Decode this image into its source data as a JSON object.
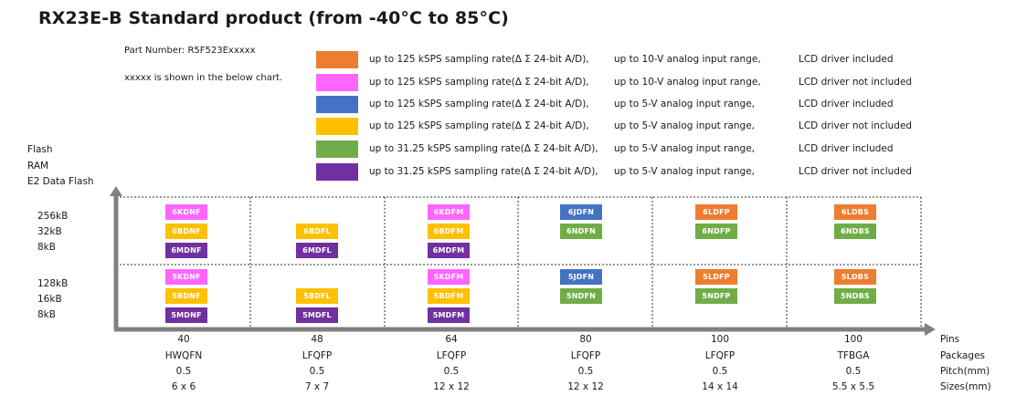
{
  "title": "RX23E-B Standard product (from -40°C to 85°C)",
  "part_number": "Part Number: R5F523Exxxxx",
  "part_note": "xxxxx is shown in the below chart.",
  "legend": [
    {
      "color": "#ED7D31",
      "rate": "up to 125 kSPS sampling rate(Δ Σ 24-bit A/D),",
      "range": "up to 10-V analog input range,",
      "lcd": "LCD driver included"
    },
    {
      "color": "#FF66FF",
      "rate": "up to 125 kSPS sampling rate(Δ Σ 24-bit A/D),",
      "range": "up to 10-V analog input range,",
      "lcd": "LCD driver not included"
    },
    {
      "color": "#4472C4",
      "rate": "up to 125 kSPS sampling rate(Δ Σ 24-bit A/D),",
      "range": "up to 5-V analog input range,",
      "lcd": "LCD driver included"
    },
    {
      "color": "#FFC000",
      "rate": "up to 125 kSPS sampling rate(Δ Σ 24-bit A/D),",
      "range": "up to 5-V analog input range,",
      "lcd": "LCD driver not included"
    },
    {
      "color": "#70AD47",
      "rate": "up to 31.25 kSPS sampling rate(Δ Σ 24-bit A/D),",
      "range": "up to 5-V analog input range,",
      "lcd": "LCD driver included"
    },
    {
      "color": "#7030A0",
      "rate": "up to 31.25 kSPS sampling rate(Δ Σ 24-bit A/D),",
      "range": "up to 5-V analog input range,",
      "lcd": "LCD driver not included"
    }
  ],
  "y_axis_headers": [
    "Flash",
    "RAM",
    "E2 Data Flash"
  ],
  "memory_rows": [
    [
      "256kB",
      "32kB",
      "8kB"
    ],
    [
      "128kB",
      "16kB",
      "8kB"
    ]
  ],
  "columns": [
    {
      "pins": "40",
      "package": "HWQFN",
      "pitch": "0.5",
      "size": "6 x 6"
    },
    {
      "pins": "48",
      "package": "LFQFP",
      "pitch": "0.5",
      "size": "7 x 7"
    },
    {
      "pins": "64",
      "package": "LFQFP",
      "pitch": "0.5",
      "size": "12 x 12"
    },
    {
      "pins": "80",
      "package": "LFQFP",
      "pitch": "0.5",
      "size": "12 x 12"
    },
    {
      "pins": "100",
      "package": "LFQFP",
      "pitch": "0.5",
      "size": "14 x 14"
    },
    {
      "pins": "100",
      "package": "TFBGA",
      "pitch": "0.5",
      "size": "5.5 x 5.5"
    }
  ],
  "row_labels": [
    "Pins",
    "Packages",
    "Pitch(mm)",
    "Sizes(mm)"
  ],
  "lineup": {
    "cells": [
      {
        "code": "6KDNF",
        "col": 0,
        "mem": 0,
        "slot": 0,
        "color": "#FF66FF"
      },
      {
        "code": "6BDNF",
        "col": 0,
        "mem": 0,
        "slot": 1,
        "color": "#FFC000"
      },
      {
        "code": "6MDNF",
        "col": 0,
        "mem": 0,
        "slot": 2,
        "color": "#7030A0"
      },
      {
        "code": "6BDFL",
        "col": 1,
        "mem": 0,
        "slot": 1,
        "color": "#FFC000"
      },
      {
        "code": "6MDFL",
        "col": 1,
        "mem": 0,
        "slot": 2,
        "color": "#7030A0"
      },
      {
        "code": "6KDFM",
        "col": 2,
        "mem": 0,
        "slot": 0,
        "color": "#FF66FF"
      },
      {
        "code": "6BDFM",
        "col": 2,
        "mem": 0,
        "slot": 1,
        "color": "#FFC000"
      },
      {
        "code": "6MDFM",
        "col": 2,
        "mem": 0,
        "slot": 2,
        "color": "#7030A0"
      },
      {
        "code": "6JDFN",
        "col": 3,
        "mem": 0,
        "slot": 0,
        "color": "#4472C4"
      },
      {
        "code": "6NDFN",
        "col": 3,
        "mem": 0,
        "slot": 1,
        "color": "#70AD47"
      },
      {
        "code": "6LDFP",
        "col": 4,
        "mem": 0,
        "slot": 0,
        "color": "#ED7D31"
      },
      {
        "code": "6NDFP",
        "col": 4,
        "mem": 0,
        "slot": 1,
        "color": "#70AD47"
      },
      {
        "code": "6LDBS",
        "col": 5,
        "mem": 0,
        "slot": 0,
        "color": "#ED7D31"
      },
      {
        "code": "6NDBS",
        "col": 5,
        "mem": 0,
        "slot": 1,
        "color": "#70AD47"
      },
      {
        "code": "5KDNF",
        "col": 0,
        "mem": 1,
        "slot": 0,
        "color": "#FF66FF"
      },
      {
        "code": "5BDNF",
        "col": 0,
        "mem": 1,
        "slot": 1,
        "color": "#FFC000"
      },
      {
        "code": "5MDNF",
        "col": 0,
        "mem": 1,
        "slot": 2,
        "color": "#7030A0"
      },
      {
        "code": "5BDFL",
        "col": 1,
        "mem": 1,
        "slot": 1,
        "color": "#FFC000"
      },
      {
        "code": "5MDFL",
        "col": 1,
        "mem": 1,
        "slot": 2,
        "color": "#7030A0"
      },
      {
        "code": "5KDFM",
        "col": 2,
        "mem": 1,
        "slot": 0,
        "color": "#FF66FF"
      },
      {
        "code": "5BDFM",
        "col": 2,
        "mem": 1,
        "slot": 1,
        "color": "#FFC000"
      },
      {
        "code": "5MDFM",
        "col": 2,
        "mem": 1,
        "slot": 2,
        "color": "#7030A0"
      },
      {
        "code": "5JDFN",
        "col": 3,
        "mem": 1,
        "slot": 0,
        "color": "#4472C4"
      },
      {
        "code": "5NDFN",
        "col": 3,
        "mem": 1,
        "slot": 1,
        "color": "#70AD47"
      },
      {
        "code": "5LDFP",
        "col": 4,
        "mem": 1,
        "slot": 0,
        "color": "#ED7D31"
      },
      {
        "code": "5NDFP",
        "col": 4,
        "mem": 1,
        "slot": 1,
        "color": "#70AD47"
      },
      {
        "code": "5LDBS",
        "col": 5,
        "mem": 1,
        "slot": 0,
        "color": "#ED7D31"
      },
      {
        "code": "5NDBS",
        "col": 5,
        "mem": 1,
        "slot": 1,
        "color": "#70AD47"
      }
    ]
  },
  "colors": {
    "axis": "#808080",
    "grid": "#333333",
    "cell_text": "#FFFFFF"
  }
}
